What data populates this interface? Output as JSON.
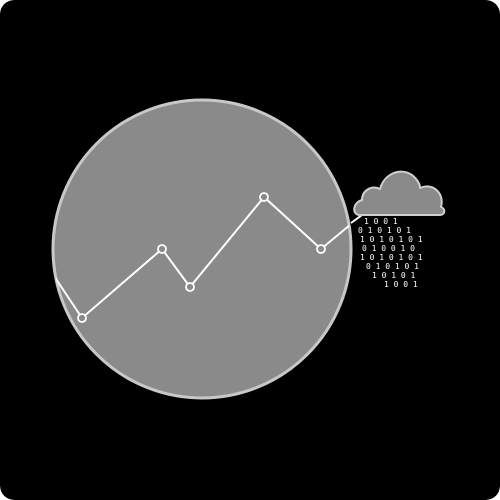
{
  "illustration": {
    "icons": [
      "globe-circle-icon",
      "line-graph-icon",
      "cloud-icon",
      "binary-rain-icon"
    ],
    "colors": {
      "background": "#000000",
      "circle_fill": "#8a8a8a",
      "circle_stroke": "#c8c8c8",
      "line": "#ffffff",
      "cloud_fill": "#8a8a8a",
      "cloud_stroke": "#d0d0d0",
      "digits": "#ffffff"
    },
    "binary_rows": [
      "1 0 0 1",
      "0 1 0 1 0 1",
      "1 0 1 0 1 0 1",
      "0 1 0 0 1 0",
      "1 0 1 0 1 0 1",
      "0 1 0 1 0 1",
      "1 0 1 0 1",
      "1 0 0 1"
    ]
  }
}
